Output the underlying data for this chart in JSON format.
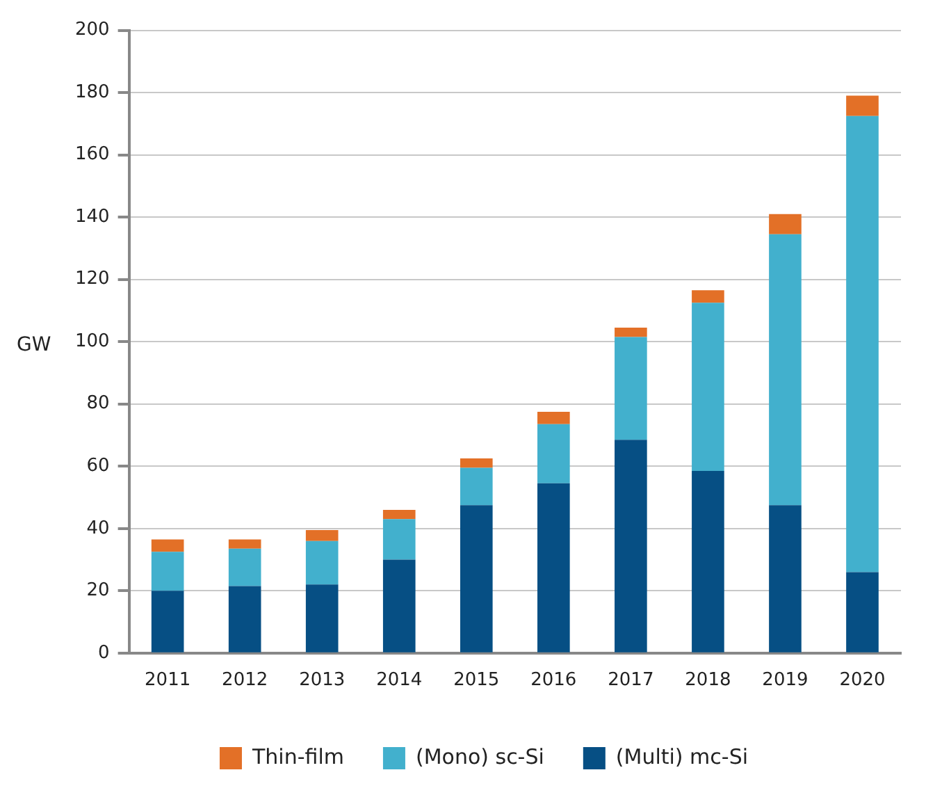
{
  "chart_data": {
    "type": "bar",
    "stacked": true,
    "ylabel": "GW",
    "categories": [
      "2011",
      "2012",
      "2013",
      "2014",
      "2015",
      "2016",
      "2017",
      "2018",
      "2019",
      "2020"
    ],
    "series": [
      {
        "name": "(Multi) mc-Si",
        "color": "#064f84",
        "values": [
          20,
          21.5,
          22,
          30,
          47.5,
          54.5,
          68.5,
          58.5,
          47.5,
          26
        ]
      },
      {
        "name": "(Mono) sc-Si",
        "color": "#42b0cd",
        "values": [
          12.5,
          12,
          14,
          13,
          12,
          19,
          33,
          54,
          87,
          146.5
        ]
      },
      {
        "name": "Thin-film",
        "color": "#e37027",
        "values": [
          4,
          3,
          3.5,
          3,
          3,
          4,
          3,
          4,
          6.5,
          6.5
        ]
      }
    ],
    "ylim": [
      0,
      200
    ],
    "yticks": [
      0,
      20,
      40,
      60,
      80,
      100,
      120,
      140,
      160,
      180,
      200
    ],
    "grid": "y",
    "legend": "bottom"
  }
}
